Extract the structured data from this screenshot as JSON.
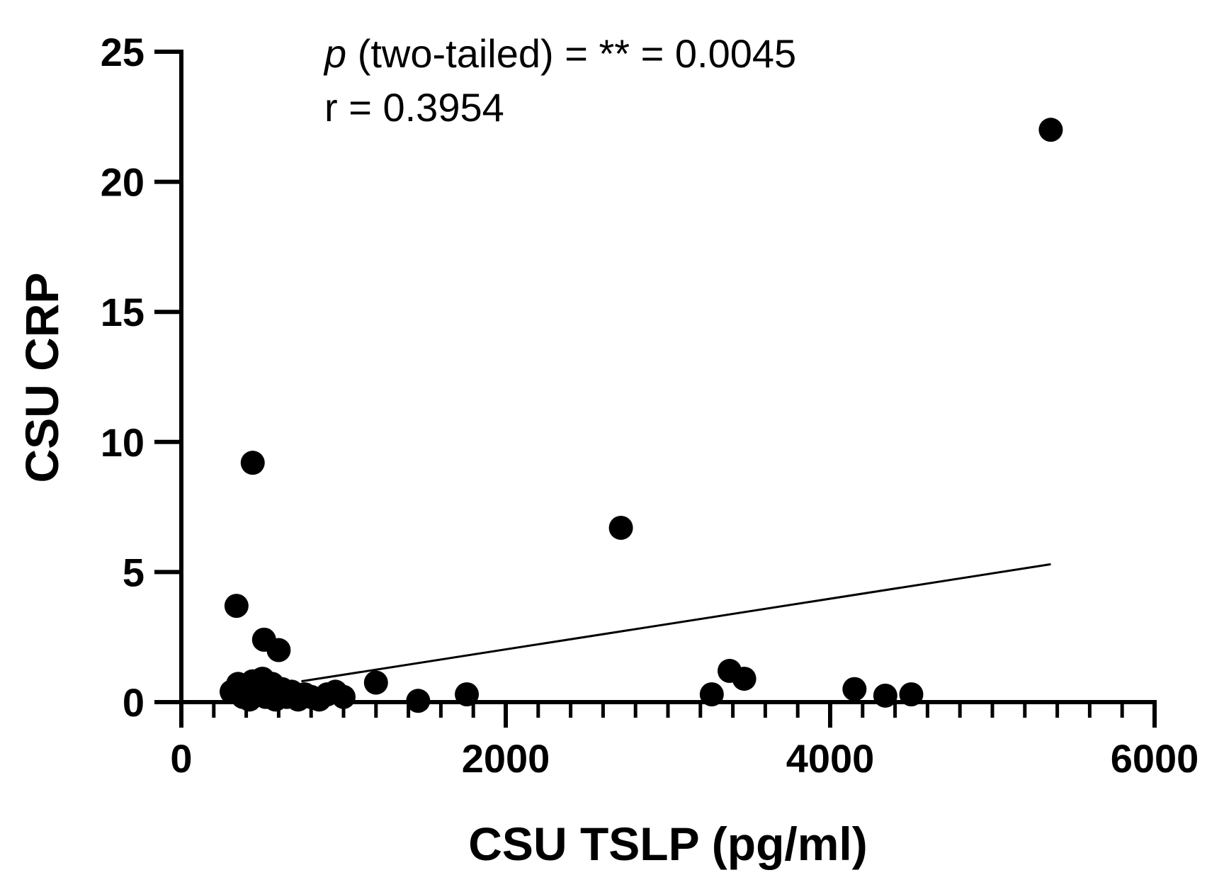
{
  "chart_data": {
    "type": "scatter",
    "title": "",
    "xlabel": "CSU TSLP (pg/ml)",
    "ylabel": "CSU CRP",
    "xlim": [
      0,
      6000
    ],
    "ylim": [
      0,
      25
    ],
    "x_ticks": [
      0,
      2000,
      4000,
      6000
    ],
    "x_tick_labels": [
      "0",
      "2000",
      "4000",
      "6000"
    ],
    "x_minor_step": 200,
    "y_ticks": [
      0,
      5,
      10,
      15,
      20,
      25
    ],
    "y_tick_labels": [
      "0",
      "5",
      "10",
      "15",
      "20",
      "25"
    ],
    "y_minor_step": 5,
    "grid": false,
    "marker_color": "#000000",
    "line_color": "#000000",
    "annotation": {
      "p_symbol": "p",
      "p_text": " (two-tailed) = ** = 0.0045",
      "r_text": "r = 0.3954",
      "position": "top-center"
    },
    "regression_line": {
      "x": [
        740,
        5360
      ],
      "y": [
        0.8,
        5.3
      ]
    },
    "series": [
      {
        "name": "CSU",
        "points": [
          {
            "x": 5360,
            "y": 22.0
          },
          {
            "x": 440,
            "y": 9.2
          },
          {
            "x": 2710,
            "y": 6.7
          },
          {
            "x": 340,
            "y": 3.7
          },
          {
            "x": 510,
            "y": 2.4
          },
          {
            "x": 600,
            "y": 2.0
          },
          {
            "x": 1200,
            "y": 0.75
          },
          {
            "x": 3380,
            "y": 1.2
          },
          {
            "x": 3470,
            "y": 0.9
          },
          {
            "x": 3270,
            "y": 0.3
          },
          {
            "x": 4150,
            "y": 0.5
          },
          {
            "x": 4340,
            "y": 0.25
          },
          {
            "x": 4500,
            "y": 0.3
          },
          {
            "x": 1760,
            "y": 0.3
          },
          {
            "x": 1460,
            "y": 0.05
          },
          {
            "x": 310,
            "y": 0.4
          },
          {
            "x": 350,
            "y": 0.7
          },
          {
            "x": 380,
            "y": 0.2
          },
          {
            "x": 400,
            "y": 0.6
          },
          {
            "x": 420,
            "y": 0.1
          },
          {
            "x": 440,
            "y": 0.8
          },
          {
            "x": 460,
            "y": 0.3
          },
          {
            "x": 480,
            "y": 0.5
          },
          {
            "x": 500,
            "y": 0.9
          },
          {
            "x": 520,
            "y": 0.2
          },
          {
            "x": 540,
            "y": 0.4
          },
          {
            "x": 560,
            "y": 0.7
          },
          {
            "x": 580,
            "y": 0.1
          },
          {
            "x": 600,
            "y": 0.3
          },
          {
            "x": 620,
            "y": 0.5
          },
          {
            "x": 650,
            "y": 0.2
          },
          {
            "x": 680,
            "y": 0.4
          },
          {
            "x": 720,
            "y": 0.1
          },
          {
            "x": 760,
            "y": 0.3
          },
          {
            "x": 800,
            "y": 0.2
          },
          {
            "x": 850,
            "y": 0.1
          },
          {
            "x": 900,
            "y": 0.3
          },
          {
            "x": 950,
            "y": 0.4
          },
          {
            "x": 1000,
            "y": 0.2
          }
        ]
      }
    ]
  }
}
